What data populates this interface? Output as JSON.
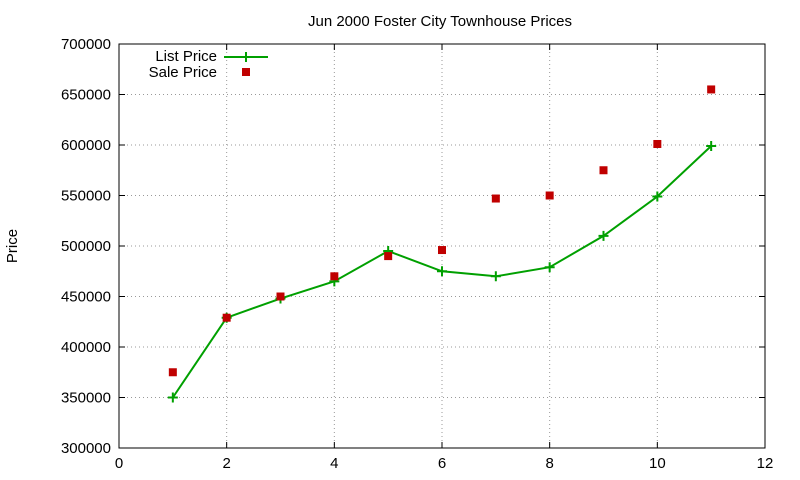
{
  "chart_data": {
    "type": "line",
    "title": "Jun 2000 Foster City Townhouse Prices",
    "xlabel": "",
    "ylabel": "Price",
    "xlim": [
      0,
      12
    ],
    "ylim": [
      300000,
      700000
    ],
    "xticks": [
      0,
      2,
      4,
      6,
      8,
      10,
      12
    ],
    "yticks": [
      300000,
      350000,
      400000,
      450000,
      500000,
      550000,
      600000,
      650000,
      700000
    ],
    "grid": true,
    "legend_position": "top-left",
    "series": [
      {
        "name": "List Price",
        "style": "lines+points",
        "marker": "plus",
        "color": "#00a000",
        "x": [
          1,
          2,
          3,
          4,
          5,
          6,
          7,
          8,
          9,
          10,
          11
        ],
        "y": [
          350000,
          429000,
          448000,
          465000,
          495000,
          475000,
          470000,
          479000,
          510000,
          549000,
          599000
        ]
      },
      {
        "name": "Sale Price",
        "style": "points",
        "marker": "square",
        "color": "#c00000",
        "x": [
          1,
          2,
          3,
          4,
          5,
          6,
          7,
          8,
          9,
          10,
          11
        ],
        "y": [
          375000,
          429000,
          450000,
          470000,
          490000,
          496000,
          547000,
          550000,
          575000,
          601000,
          655000
        ]
      }
    ]
  }
}
